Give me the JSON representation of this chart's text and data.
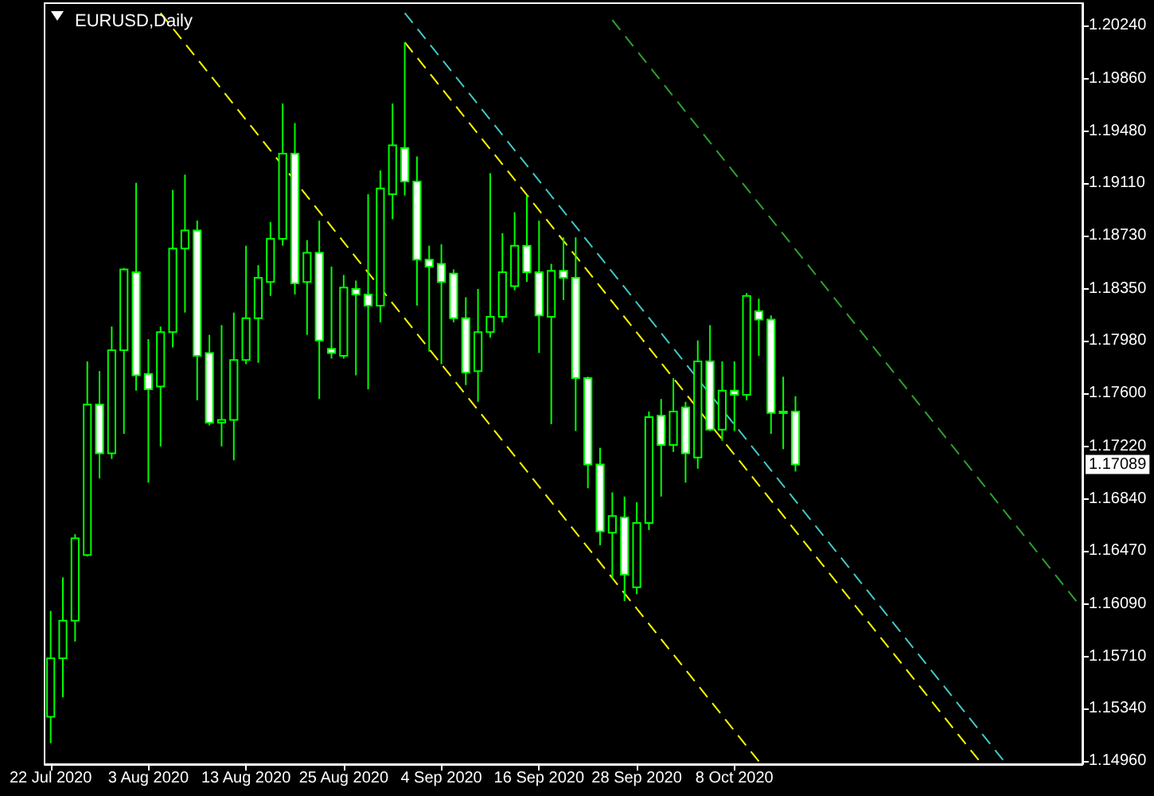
{
  "chart_data": {
    "type": "candlestick",
    "title": "EURUSD,Daily",
    "grid": false,
    "categories": [
      "22 Jul 2020",
      null,
      null,
      null,
      null,
      null,
      null,
      null,
      "3 Aug 2020",
      null,
      null,
      null,
      null,
      null,
      null,
      null,
      "13 Aug 2020",
      null,
      null,
      null,
      null,
      null,
      null,
      null,
      "25 Aug 2020",
      null,
      null,
      null,
      null,
      null,
      null,
      null,
      "4 Sep 2020",
      null,
      null,
      null,
      null,
      null,
      null,
      null,
      "16 Sep 2020",
      null,
      null,
      null,
      null,
      null,
      null,
      null,
      "28 Sep 2020",
      null,
      null,
      null,
      null,
      null,
      null,
      null,
      "8 Oct 2020",
      null,
      null,
      null,
      null,
      null,
      null,
      null,
      null,
      null,
      null,
      null,
      null,
      null,
      null,
      null,
      null,
      null,
      null,
      null,
      null,
      null,
      null,
      null,
      null,
      null,
      null,
      null,
      null
    ],
    "ylim": [
      1.1494,
      1.204
    ],
    "yticks": [
      {
        "value": 1.2024,
        "label": "1.20240"
      },
      {
        "value": 1.1986,
        "label": "1.19860"
      },
      {
        "value": 1.1948,
        "label": "1.19480"
      },
      {
        "value": 1.1911,
        "label": "1.19110"
      },
      {
        "value": 1.1873,
        "label": "1.18730"
      },
      {
        "value": 1.1835,
        "label": "1.18350"
      },
      {
        "value": 1.1798,
        "label": "1.17980"
      },
      {
        "value": 1.176,
        "label": "1.17600"
      },
      {
        "value": 1.1722,
        "label": "1.17220"
      },
      {
        "value": 1.1684,
        "label": "1.16840"
      },
      {
        "value": 1.1647,
        "label": "1.16470"
      },
      {
        "value": 1.1609,
        "label": "1.16090"
      },
      {
        "value": 1.1571,
        "label": "1.15710"
      },
      {
        "value": 1.1534,
        "label": "1.15340"
      },
      {
        "value": 1.1496,
        "label": "1.14960"
      }
    ],
    "annotations": [
      "1.17089"
    ],
    "series": [
      {
        "color": "#00ff00",
        "ohlc": [
          [
            1.1528,
            1.1604,
            1.1509,
            1.157
          ],
          [
            1.157,
            1.1628,
            1.1542,
            1.1597
          ],
          [
            1.1597,
            1.1659,
            1.1582,
            1.1656
          ],
          [
            1.1644,
            1.1783,
            1.1643,
            1.1752
          ],
          [
            1.1752,
            1.1776,
            1.1699,
            1.1717
          ],
          [
            1.1717,
            1.1808,
            1.1713,
            1.1791
          ],
          [
            1.1791,
            1.185,
            1.1731,
            1.1849
          ],
          [
            1.1847,
            1.1911,
            1.1762,
            1.1773
          ],
          [
            1.1774,
            1.1799,
            1.1696,
            1.1763
          ],
          [
            1.1765,
            1.1808,
            1.1722,
            1.1804
          ],
          [
            1.1804,
            1.1906,
            1.1793,
            1.1864
          ],
          [
            1.1864,
            1.1917,
            1.1818,
            1.1877
          ],
          [
            1.1877,
            1.1884,
            1.1755,
            1.1787
          ],
          [
            1.1789,
            1.1802,
            1.1737,
            1.1739
          ],
          [
            1.1739,
            1.1809,
            1.1722,
            1.1741
          ],
          [
            1.1741,
            1.1818,
            1.1712,
            1.1784
          ],
          [
            1.1784,
            1.1866,
            1.1781,
            1.1814
          ],
          [
            1.1814,
            1.1852,
            1.1782,
            1.1843
          ],
          [
            1.184,
            1.1883,
            1.183,
            1.1871
          ],
          [
            1.1871,
            1.1968,
            1.1866,
            1.1932
          ],
          [
            1.1932,
            1.1954,
            1.1831,
            1.1839
          ],
          [
            1.184,
            1.187,
            1.1802,
            1.1861
          ],
          [
            1.1861,
            1.1884,
            1.1756,
            1.1798
          ],
          [
            1.1792,
            1.1851,
            1.1785,
            1.1789
          ],
          [
            1.1787,
            1.1845,
            1.1785,
            1.1836
          ],
          [
            1.1835,
            1.1841,
            1.1773,
            1.1831
          ],
          [
            1.1831,
            1.1903,
            1.1763,
            1.1823
          ],
          [
            1.1823,
            1.192,
            1.1811,
            1.1907
          ],
          [
            1.1903,
            1.1968,
            1.1885,
            1.1938
          ],
          [
            1.1936,
            1.2012,
            1.1902,
            1.1912
          ],
          [
            1.1912,
            1.193,
            1.1823,
            1.1856
          ],
          [
            1.1856,
            1.1866,
            1.179,
            1.1851
          ],
          [
            1.1853,
            1.1867,
            1.1781,
            1.184
          ],
          [
            1.1846,
            1.1849,
            1.1811,
            1.1814
          ],
          [
            1.1814,
            1.1829,
            1.1766,
            1.1775
          ],
          [
            1.1776,
            1.1835,
            1.1754,
            1.1804
          ],
          [
            1.1804,
            1.1918,
            1.18,
            1.1815
          ],
          [
            1.1815,
            1.1875,
            1.1811,
            1.1847
          ],
          [
            1.1837,
            1.189,
            1.1834,
            1.1866
          ],
          [
            1.1866,
            1.1902,
            1.184,
            1.1847
          ],
          [
            1.1847,
            1.1884,
            1.1789,
            1.1816
          ],
          [
            1.1815,
            1.1853,
            1.1738,
            1.1848
          ],
          [
            1.1848,
            1.1872,
            1.1827,
            1.1843
          ],
          [
            1.1843,
            1.1872,
            1.1733,
            1.1771
          ],
          [
            1.1771,
            1.1772,
            1.1692,
            1.1709
          ],
          [
            1.1709,
            1.1721,
            1.1651,
            1.1661
          ],
          [
            1.166,
            1.1689,
            1.1627,
            1.1672
          ],
          [
            1.1671,
            1.1686,
            1.1611,
            1.163
          ],
          [
            1.1621,
            1.1682,
            1.1616,
            1.1667
          ],
          [
            1.1667,
            1.1747,
            1.1662,
            1.1743
          ],
          [
            1.1744,
            1.1756,
            1.1686,
            1.1723
          ],
          [
            1.1723,
            1.1771,
            1.1718,
            1.1747
          ],
          [
            1.175,
            1.1754,
            1.1696,
            1.1717
          ],
          [
            1.1714,
            1.1798,
            1.1706,
            1.1783
          ],
          [
            1.1783,
            1.1809,
            1.1733,
            1.1734
          ],
          [
            1.1734,
            1.1783,
            1.1726,
            1.1762
          ],
          [
            1.1762,
            1.1783,
            1.1733,
            1.1759
          ],
          [
            1.1759,
            1.1832,
            1.1755,
            1.183
          ],
          [
            1.1819,
            1.1828,
            1.1787,
            1.1813
          ],
          [
            1.1813,
            1.1816,
            1.1731,
            1.1746
          ],
          [
            1.1747,
            1.1772,
            1.172,
            1.1747
          ],
          [
            1.1747,
            1.1758,
            1.1704,
            1.1709
          ],
          null,
          null,
          null,
          null,
          null,
          null,
          null,
          null,
          null,
          null,
          null,
          null,
          null,
          null,
          null,
          null,
          null,
          null,
          null,
          null,
          null,
          null,
          null
        ]
      },
      {
        "type": "line",
        "color": "#ffff00",
        "line_style": "dashed",
        "values": [
          null,
          null,
          null,
          null,
          null,
          null,
          null,
          null,
          null,
          1.2033,
          null,
          null,
          null,
          null,
          null,
          null,
          null,
          null,
          null,
          null,
          null,
          null,
          null,
          null,
          null,
          null,
          null,
          null,
          null,
          null,
          null,
          null,
          null,
          null,
          null,
          null,
          null,
          null,
          null,
          null,
          null,
          null,
          null,
          null,
          null,
          null,
          null,
          null,
          null,
          null,
          null,
          null,
          null,
          null,
          null,
          null,
          null,
          null,
          1.1496,
          null,
          null,
          null,
          null,
          null,
          null,
          null,
          null,
          null,
          null,
          null,
          null,
          null,
          null,
          null,
          null,
          null,
          null,
          null,
          null,
          null,
          null,
          null,
          null,
          null,
          null
        ]
      },
      {
        "type": "line",
        "color": "#ffff00",
        "line_style": "dashed",
        "values": [
          null,
          null,
          null,
          null,
          null,
          null,
          null,
          null,
          null,
          null,
          null,
          null,
          null,
          null,
          null,
          null,
          null,
          null,
          null,
          null,
          null,
          null,
          null,
          null,
          null,
          null,
          null,
          null,
          null,
          1.2012,
          null,
          null,
          null,
          null,
          null,
          null,
          null,
          null,
          null,
          null,
          null,
          null,
          null,
          null,
          null,
          null,
          null,
          null,
          null,
          null,
          null,
          null,
          null,
          null,
          null,
          null,
          null,
          null,
          null,
          null,
          null,
          null,
          null,
          null,
          null,
          null,
          null,
          null,
          null,
          null,
          null,
          null,
          null,
          null,
          null,
          null,
          1.1497,
          null,
          null,
          null,
          null,
          null,
          null,
          null,
          null
        ]
      },
      {
        "type": "line",
        "color": "#40c8c8",
        "line_style": "dashed",
        "values": [
          null,
          null,
          null,
          null,
          null,
          null,
          null,
          null,
          null,
          null,
          null,
          null,
          null,
          null,
          null,
          null,
          null,
          null,
          null,
          null,
          null,
          null,
          null,
          null,
          null,
          null,
          null,
          null,
          null,
          1.2033,
          null,
          null,
          null,
          null,
          null,
          null,
          null,
          null,
          null,
          null,
          null,
          null,
          null,
          null,
          null,
          null,
          null,
          null,
          null,
          null,
          null,
          null,
          null,
          null,
          null,
          null,
          null,
          null,
          null,
          null,
          null,
          null,
          null,
          null,
          null,
          null,
          null,
          null,
          null,
          null,
          null,
          null,
          null,
          null,
          null,
          null,
          null,
          null,
          1.1497,
          null,
          null,
          null,
          null,
          null,
          null
        ]
      },
      {
        "type": "line",
        "color": "#2ea02e",
        "line_style": "dashed",
        "values": [
          null,
          null,
          null,
          null,
          null,
          null,
          null,
          null,
          null,
          null,
          null,
          null,
          null,
          null,
          null,
          null,
          null,
          null,
          null,
          null,
          null,
          null,
          null,
          null,
          null,
          null,
          null,
          null,
          null,
          null,
          null,
          null,
          null,
          null,
          null,
          null,
          null,
          null,
          null,
          null,
          null,
          null,
          null,
          null,
          null,
          null,
          1.2028,
          null,
          null,
          null,
          null,
          null,
          null,
          null,
          null,
          null,
          null,
          null,
          null,
          null,
          null,
          null,
          null,
          null,
          null,
          null,
          null,
          null,
          null,
          null,
          null,
          null,
          null,
          null,
          null,
          null,
          null,
          null,
          null,
          null,
          null,
          null,
          null,
          null,
          1.1611
        ]
      }
    ]
  }
}
